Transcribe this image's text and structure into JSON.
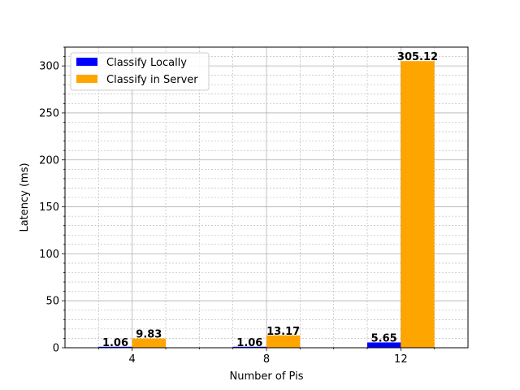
{
  "chart_data": {
    "type": "bar",
    "title": "",
    "xlabel": "Number of Pis",
    "ylabel": "Latency (ms)",
    "categories": [
      "4",
      "8",
      "12"
    ],
    "series": [
      {
        "name": "Classify Locally",
        "values": [
          1.06,
          1.06,
          5.65
        ],
        "labels": [
          "1.06",
          "1.06",
          "5.65"
        ],
        "color": "#0000ff"
      },
      {
        "name": "Classify in Server",
        "values": [
          9.83,
          13.17,
          305.12
        ],
        "labels": [
          "9.83",
          "13.17",
          "305.12"
        ],
        "color": "#ffa500"
      }
    ],
    "ylim": [
      0,
      320
    ],
    "yticks": [
      0,
      50,
      100,
      150,
      200,
      250,
      300
    ],
    "ytick_labels": [
      "0",
      "50",
      "100",
      "150",
      "200",
      "250",
      "300"
    ],
    "grid": true,
    "minor_grid": true,
    "legend_position": "top-left"
  }
}
